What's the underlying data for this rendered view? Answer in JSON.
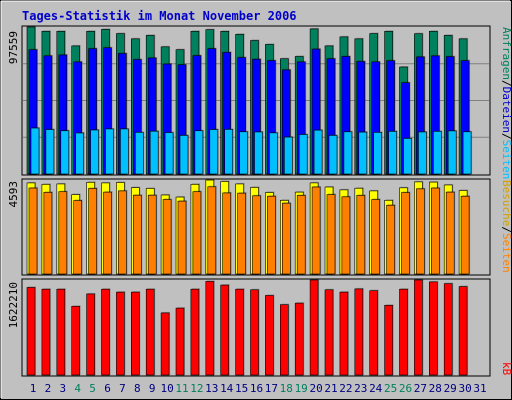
{
  "title": "Tages-Statistik im Monat November 2006",
  "colors": {
    "background": "#C0C0C0",
    "title": "#0000CC",
    "hits": "#00805C",
    "files": "#0000FF",
    "pages": "#00C0FF",
    "visits": "#FFFF00",
    "sites": "#FF8000",
    "kbytes": "#FF0000",
    "weekend_label": "#00805C",
    "weekday_label": "#000080"
  },
  "legend": {
    "top": [
      {
        "text": "Anfragen",
        "color": "#00805C"
      },
      {
        "text": "/",
        "color": "#000000"
      },
      {
        "text": "Dateien",
        "color": "#0000CC"
      },
      {
        "text": "/",
        "color": "#000000"
      },
      {
        "text": "Seiten",
        "color": "#00C0FF"
      }
    ],
    "middle": [
      {
        "text": "Besuche",
        "color": "#D0A000"
      },
      {
        "text": "/",
        "color": "#000000"
      },
      {
        "text": "Seiten",
        "color": "#FF8000"
      }
    ],
    "bottom": [
      {
        "text": "kB",
        "color": "#FF0000"
      }
    ]
  },
  "axis_max_labels": {
    "top": "97559",
    "middle": "4593",
    "bottom": "1622210"
  },
  "chart_data": {
    "type": "bar",
    "title": "Tages-Statistik im Monat November 2006",
    "categories": [
      "1",
      "2",
      "3",
      "4",
      "5",
      "6",
      "7",
      "8",
      "9",
      "10",
      "11",
      "12",
      "13",
      "14",
      "15",
      "16",
      "17",
      "18",
      "19",
      "20",
      "21",
      "22",
      "23",
      "24",
      "25",
      "26",
      "27",
      "28",
      "29",
      "30",
      "31"
    ],
    "weekend_days": [
      "4",
      "5",
      "11",
      "12",
      "18",
      "19",
      "25",
      "26"
    ],
    "panels": [
      {
        "name": "top",
        "ymax": 97559,
        "series": [
          {
            "name": "Anfragen",
            "values": [
              97559,
              94700,
              94700,
              85000,
              94700,
              96000,
              93200,
              89700,
              92000,
              84400,
              82500,
              94700,
              95800,
              94700,
              92700,
              88600,
              86000,
              76500,
              78000,
              96300,
              85000,
              91000,
              89700,
              93200,
              94700,
              71000,
              93100,
              94700,
              92000,
              89700,
              null
            ]
          },
          {
            "name": "Dateien",
            "values": [
              82500,
              78400,
              79000,
              74400,
              83200,
              83800,
              80000,
              76000,
              77000,
              73000,
              72500,
              78600,
              83200,
              80700,
              77300,
              76200,
              75300,
              69100,
              74400,
              82900,
              76500,
              78000,
              74700,
              74400,
              75200,
              60600,
              77700,
              78400,
              77900,
              75200,
              null
            ]
          },
          {
            "name": "Seiten",
            "values": [
              30500,
              29500,
              28700,
              27200,
              29200,
              29900,
              29900,
              27600,
              28400,
              27500,
              25600,
              28700,
              29500,
              29600,
              28000,
              27900,
              27300,
              24500,
              26200,
              29100,
              25600,
              28000,
              27800,
              27600,
              28300,
              23600,
              27900,
              28300,
              28600,
              28000,
              null
            ]
          }
        ]
      },
      {
        "name": "middle",
        "ymax": 4593,
        "series": [
          {
            "name": "Besuche",
            "values": [
              4450,
              4380,
              4400,
              3880,
              4480,
              4450,
              4470,
              4220,
              4180,
              3860,
              3760,
              4380,
              4590,
              4520,
              4400,
              4230,
              3980,
              3600,
              4000,
              4450,
              4250,
              4110,
              4190,
              4060,
              3600,
              4210,
              4500,
              4490,
              4350,
              4080,
              null
            ]
          },
          {
            "name": "Seiten",
            "values": [
              4200,
              3990,
              4020,
              3590,
              4180,
              4000,
              4060,
              3850,
              3850,
              3640,
              3560,
              4020,
              4260,
              3960,
              3950,
              3820,
              3800,
              3460,
              3840,
              4250,
              3880,
              3770,
              3840,
              3640,
              3360,
              3980,
              4160,
              4200,
              4000,
              3800,
              null
            ]
          }
        ]
      },
      {
        "name": "bottom",
        "ymax": 1622210,
        "series": [
          {
            "name": "kB",
            "values": [
              1495000,
              1465000,
              1465000,
              1173000,
              1384000,
              1465000,
              1415000,
              1415000,
              1465000,
              1060000,
              1142000,
              1465000,
              1598000,
              1535000,
              1465000,
              1455000,
              1358000,
              1201000,
              1227000,
              1622210,
              1455000,
              1415000,
              1470000,
              1440000,
              1190000,
              1465000,
              1622210,
              1590000,
              1560000,
              1510000,
              null
            ]
          }
        ]
      }
    ]
  }
}
